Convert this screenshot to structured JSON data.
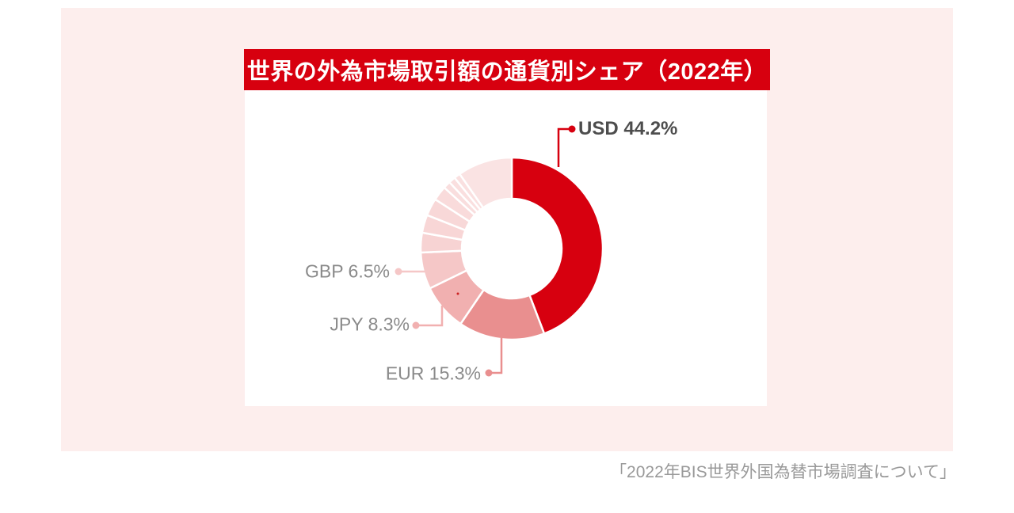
{
  "panel": {
    "background": "#fdeeed"
  },
  "header": {
    "title": "世界の外為市場取引額の通貨別シェア（2022年）",
    "background": "#d7000f",
    "text_color": "#ffffff"
  },
  "source": {
    "text": "「2022年BIS世界外国為替市場調査について」"
  },
  "chart_data": {
    "type": "pie",
    "subtype": "donut",
    "title": "世界の外為市場取引額の通貨別シェア（2022年）",
    "unit": "%",
    "start_angle_deg": 0,
    "direction": "clockwise",
    "inner_radius_ratio": 0.54,
    "slice_gap_color": "#ffffff",
    "segments": [
      {
        "label": "USD",
        "value": 44.2,
        "color": "#d7000f",
        "callout": "USD 44.2%",
        "estimated": false
      },
      {
        "label": "EUR",
        "value": 15.3,
        "color": "#e98f8f",
        "callout": "EUR 15.3%",
        "estimated": false
      },
      {
        "label": "JPY",
        "value": 8.3,
        "color": "#f1b0b0",
        "callout": "JPY 8.3%",
        "estimated": false
      },
      {
        "label": "GBP",
        "value": 6.5,
        "color": "#f5c7c7",
        "callout": "GBP 6.5%",
        "estimated": false
      },
      {
        "label": "",
        "value": 3.5,
        "color": "#f7d3d3",
        "callout": "",
        "estimated": true
      },
      {
        "label": "",
        "value": 3.2,
        "color": "#f8d6d6",
        "callout": "",
        "estimated": true
      },
      {
        "label": "",
        "value": 3.1,
        "color": "#f8d8d8",
        "callout": "",
        "estimated": true
      },
      {
        "label": "",
        "value": 2.6,
        "color": "#f9dbdb",
        "callout": "",
        "estimated": true
      },
      {
        "label": "",
        "value": 1.3,
        "color": "#f9dede",
        "callout": "",
        "estimated": true
      },
      {
        "label": "",
        "value": 1.2,
        "color": "#fadfdf",
        "callout": "",
        "estimated": true
      },
      {
        "label": "",
        "value": 1.1,
        "color": "#fae0e0",
        "callout": "",
        "estimated": true
      },
      {
        "label": "",
        "value": 9.7,
        "color": "#fae3e3",
        "callout": "",
        "estimated": true
      }
    ],
    "callout_text_color": "#8a8a8a",
    "callout_emphasis_text_color": "#4d4d4d"
  }
}
